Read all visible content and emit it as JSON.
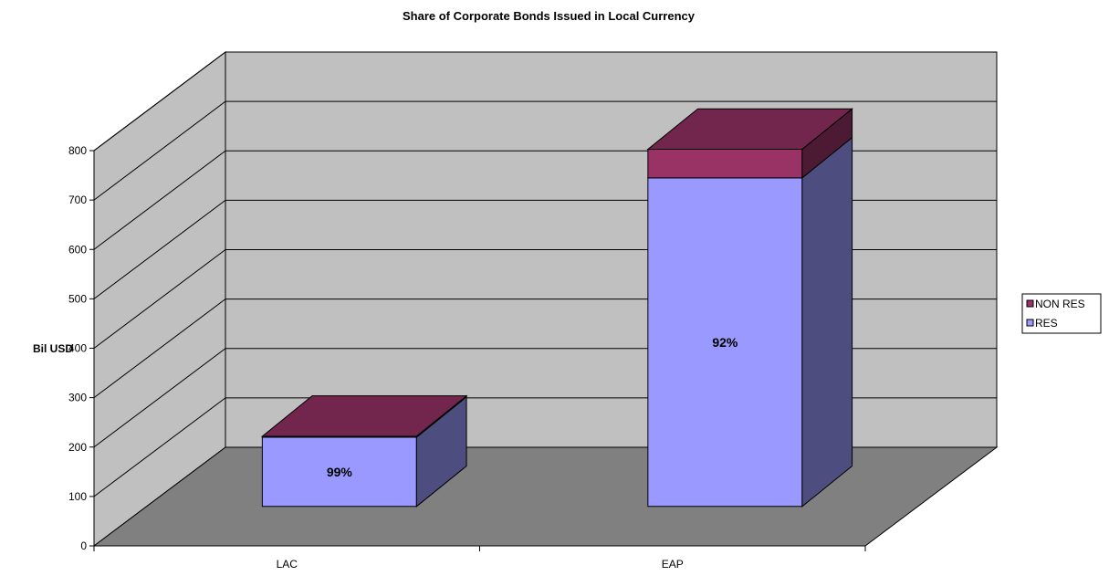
{
  "chart_data": {
    "type": "bar",
    "stacked": true,
    "three_d": true,
    "title": "Share of Corporate Bonds Issued in Local Currency",
    "xlabel": "",
    "ylabel": "Bil USD",
    "ylim": [
      0,
      800
    ],
    "yticks": [
      "0",
      "100",
      "200",
      "300",
      "400",
      "500",
      "600",
      "700",
      "800"
    ],
    "categories": [
      "LAC",
      "EAP"
    ],
    "series": [
      {
        "name": "RES",
        "values": [
          140,
          665
        ],
        "color": "#9999ff"
      },
      {
        "name": "NON RES",
        "values": [
          2,
          58
        ],
        "color": "#993366"
      }
    ],
    "data_labels": [
      "99%",
      "92%"
    ],
    "legend_position": "right",
    "grid": true,
    "colors": {
      "wall": "#c0c0c0",
      "floor": "#808080"
    }
  }
}
